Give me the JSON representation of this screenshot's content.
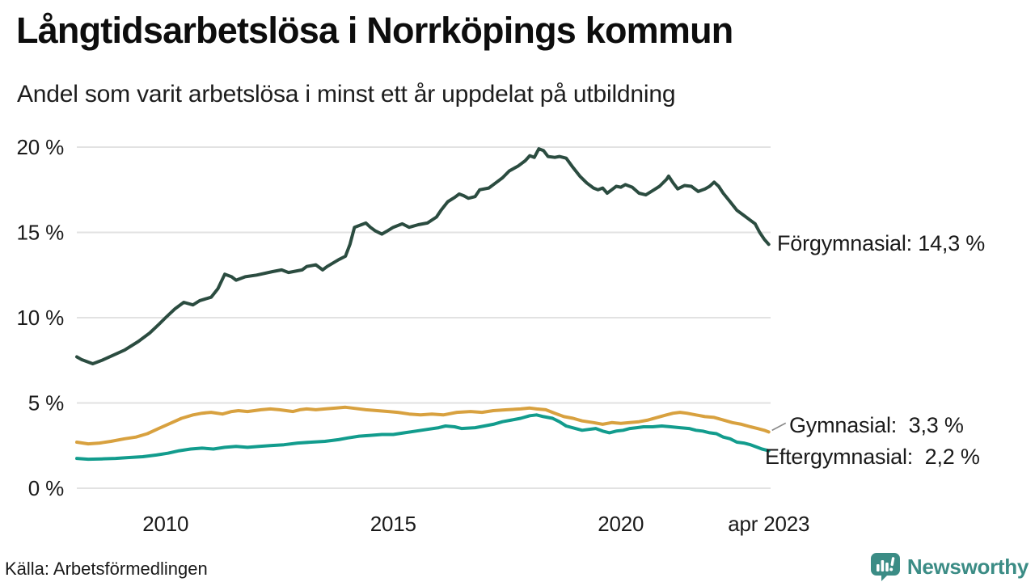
{
  "header": {
    "title": "Långtidsarbetslösa i Norrköpings kommun",
    "subtitle": "Andel som varit arbetslösa i minst ett år uppdelat på utbildning"
  },
  "chart_data": {
    "type": "line",
    "title": "Långtidsarbetslösa i Norrköpings kommun",
    "subtitle": "Andel som varit arbetslösa i minst ett år uppdelat på utbildning",
    "x_unit": "year (decimal, monthly data)",
    "xlim": [
      2008.05,
      2023.29
    ],
    "ylim": [
      0,
      20
    ],
    "grid": "horizontal",
    "legend_position": "end-of-line labels, right side",
    "y_ticks": [
      {
        "value": 0,
        "label": "0 %"
      },
      {
        "value": 5,
        "label": "5 %"
      },
      {
        "value": 10,
        "label": "10 %"
      },
      {
        "value": 15,
        "label": "15 %"
      },
      {
        "value": 20,
        "label": "20 %"
      }
    ],
    "x_ticks": [
      {
        "value": 2010,
        "label": "2010"
      },
      {
        "value": 2015,
        "label": "2015"
      },
      {
        "value": 2020,
        "label": "2020"
      },
      {
        "value": 2023.25,
        "label": "apr 2023"
      }
    ],
    "series": [
      {
        "id": "forgymnasial",
        "name": "Förgymnasial",
        "color": "#2b4c40",
        "last_value": "14,3 %",
        "end_label": "Förgymnasial: 14,3 %",
        "label_connector": false,
        "points": [
          [
            2008.05,
            7.7
          ],
          [
            2008.15,
            7.55
          ],
          [
            2008.4,
            7.3
          ],
          [
            2008.6,
            7.5
          ],
          [
            2008.85,
            7.8
          ],
          [
            2009.1,
            8.1
          ],
          [
            2009.4,
            8.6
          ],
          [
            2009.65,
            9.1
          ],
          [
            2009.85,
            9.6
          ],
          [
            2010.0,
            10.0
          ],
          [
            2010.2,
            10.5
          ],
          [
            2010.4,
            10.9
          ],
          [
            2010.6,
            10.75
          ],
          [
            2010.75,
            11.0
          ],
          [
            2011.0,
            11.2
          ],
          [
            2011.15,
            11.7
          ],
          [
            2011.3,
            12.55
          ],
          [
            2011.45,
            12.4
          ],
          [
            2011.55,
            12.2
          ],
          [
            2011.75,
            12.4
          ],
          [
            2012.0,
            12.5
          ],
          [
            2012.35,
            12.7
          ],
          [
            2012.55,
            12.8
          ],
          [
            2012.7,
            12.65
          ],
          [
            2013.0,
            12.8
          ],
          [
            2013.1,
            13.0
          ],
          [
            2013.3,
            13.1
          ],
          [
            2013.45,
            12.8
          ],
          [
            2013.55,
            13.0
          ],
          [
            2013.8,
            13.4
          ],
          [
            2013.95,
            13.6
          ],
          [
            2014.05,
            14.3
          ],
          [
            2014.15,
            15.3
          ],
          [
            2014.3,
            15.45
          ],
          [
            2014.4,
            15.55
          ],
          [
            2014.5,
            15.3
          ],
          [
            2014.6,
            15.1
          ],
          [
            2014.75,
            14.9
          ],
          [
            2014.85,
            15.05
          ],
          [
            2015.0,
            15.3
          ],
          [
            2015.2,
            15.5
          ],
          [
            2015.35,
            15.3
          ],
          [
            2015.55,
            15.45
          ],
          [
            2015.75,
            15.55
          ],
          [
            2015.95,
            15.9
          ],
          [
            2016.05,
            16.3
          ],
          [
            2016.2,
            16.8
          ],
          [
            2016.35,
            17.05
          ],
          [
            2016.45,
            17.25
          ],
          [
            2016.55,
            17.15
          ],
          [
            2016.65,
            17.0
          ],
          [
            2016.8,
            17.1
          ],
          [
            2016.9,
            17.5
          ],
          [
            2017.1,
            17.6
          ],
          [
            2017.25,
            17.9
          ],
          [
            2017.4,
            18.2
          ],
          [
            2017.55,
            18.6
          ],
          [
            2017.75,
            18.9
          ],
          [
            2017.9,
            19.2
          ],
          [
            2018.0,
            19.5
          ],
          [
            2018.1,
            19.4
          ],
          [
            2018.2,
            19.9
          ],
          [
            2018.3,
            19.8
          ],
          [
            2018.4,
            19.45
          ],
          [
            2018.55,
            19.4
          ],
          [
            2018.65,
            19.45
          ],
          [
            2018.8,
            19.35
          ],
          [
            2018.95,
            18.8
          ],
          [
            2019.1,
            18.3
          ],
          [
            2019.25,
            17.9
          ],
          [
            2019.4,
            17.6
          ],
          [
            2019.5,
            17.5
          ],
          [
            2019.6,
            17.6
          ],
          [
            2019.7,
            17.3
          ],
          [
            2019.8,
            17.5
          ],
          [
            2019.9,
            17.7
          ],
          [
            2020.0,
            17.65
          ],
          [
            2020.1,
            17.8
          ],
          [
            2020.25,
            17.65
          ],
          [
            2020.4,
            17.3
          ],
          [
            2020.55,
            17.2
          ],
          [
            2020.7,
            17.45
          ],
          [
            2020.85,
            17.7
          ],
          [
            2021.0,
            18.1
          ],
          [
            2021.05,
            18.3
          ],
          [
            2021.15,
            17.9
          ],
          [
            2021.25,
            17.55
          ],
          [
            2021.4,
            17.75
          ],
          [
            2021.55,
            17.7
          ],
          [
            2021.7,
            17.4
          ],
          [
            2021.85,
            17.55
          ],
          [
            2021.95,
            17.7
          ],
          [
            2022.05,
            17.95
          ],
          [
            2022.15,
            17.7
          ],
          [
            2022.25,
            17.3
          ],
          [
            2022.4,
            16.8
          ],
          [
            2022.55,
            16.3
          ],
          [
            2022.7,
            16.0
          ],
          [
            2022.85,
            15.7
          ],
          [
            2022.95,
            15.5
          ],
          [
            2023.05,
            15.0
          ],
          [
            2023.15,
            14.6
          ],
          [
            2023.25,
            14.3
          ]
        ]
      },
      {
        "id": "gymnasial",
        "name": "Gymnasial",
        "color": "#d8a13f",
        "last_value": "3,3 %",
        "end_label": "Gymnasial:  3,3 %",
        "label_connector": true,
        "points": [
          [
            2008.05,
            2.7
          ],
          [
            2008.3,
            2.6
          ],
          [
            2008.55,
            2.65
          ],
          [
            2008.8,
            2.75
          ],
          [
            2009.1,
            2.9
          ],
          [
            2009.35,
            3.0
          ],
          [
            2009.6,
            3.2
          ],
          [
            2009.85,
            3.5
          ],
          [
            2010.1,
            3.8
          ],
          [
            2010.35,
            4.1
          ],
          [
            2010.6,
            4.3
          ],
          [
            2010.8,
            4.4
          ],
          [
            2011.0,
            4.45
          ],
          [
            2011.25,
            4.35
          ],
          [
            2011.45,
            4.5
          ],
          [
            2011.6,
            4.55
          ],
          [
            2011.8,
            4.5
          ],
          [
            2012.1,
            4.6
          ],
          [
            2012.3,
            4.65
          ],
          [
            2012.5,
            4.6
          ],
          [
            2012.8,
            4.5
          ],
          [
            2012.95,
            4.6
          ],
          [
            2013.1,
            4.65
          ],
          [
            2013.3,
            4.6
          ],
          [
            2013.5,
            4.65
          ],
          [
            2013.75,
            4.7
          ],
          [
            2013.95,
            4.75
          ],
          [
            2014.1,
            4.7
          ],
          [
            2014.4,
            4.6
          ],
          [
            2014.65,
            4.55
          ],
          [
            2014.9,
            4.5
          ],
          [
            2015.1,
            4.45
          ],
          [
            2015.35,
            4.35
          ],
          [
            2015.6,
            4.3
          ],
          [
            2015.85,
            4.35
          ],
          [
            2016.1,
            4.3
          ],
          [
            2016.4,
            4.45
          ],
          [
            2016.7,
            4.5
          ],
          [
            2016.95,
            4.45
          ],
          [
            2017.2,
            4.55
          ],
          [
            2017.5,
            4.6
          ],
          [
            2017.8,
            4.65
          ],
          [
            2018.0,
            4.7
          ],
          [
            2018.15,
            4.65
          ],
          [
            2018.35,
            4.6
          ],
          [
            2018.55,
            4.4
          ],
          [
            2018.75,
            4.2
          ],
          [
            2018.95,
            4.1
          ],
          [
            2019.15,
            3.95
          ],
          [
            2019.4,
            3.85
          ],
          [
            2019.6,
            3.75
          ],
          [
            2019.8,
            3.85
          ],
          [
            2020.0,
            3.8
          ],
          [
            2020.2,
            3.85
          ],
          [
            2020.4,
            3.9
          ],
          [
            2020.6,
            4.0
          ],
          [
            2020.8,
            4.15
          ],
          [
            2021.0,
            4.3
          ],
          [
            2021.15,
            4.4
          ],
          [
            2021.3,
            4.45
          ],
          [
            2021.45,
            4.4
          ],
          [
            2021.65,
            4.3
          ],
          [
            2021.85,
            4.2
          ],
          [
            2022.05,
            4.15
          ],
          [
            2022.25,
            4.0
          ],
          [
            2022.45,
            3.85
          ],
          [
            2022.65,
            3.75
          ],
          [
            2022.85,
            3.6
          ],
          [
            2023.0,
            3.5
          ],
          [
            2023.15,
            3.4
          ],
          [
            2023.25,
            3.3
          ]
        ]
      },
      {
        "id": "eftergymnasial",
        "name": "Eftergymnasial",
        "color": "#129c8d",
        "last_value": "2,2 %",
        "end_label": "Eftergymnasial:  2,2 %",
        "label_connector": false,
        "points": [
          [
            2008.05,
            1.75
          ],
          [
            2008.3,
            1.7
          ],
          [
            2008.6,
            1.72
          ],
          [
            2008.9,
            1.75
          ],
          [
            2009.2,
            1.8
          ],
          [
            2009.5,
            1.85
          ],
          [
            2009.8,
            1.95
          ],
          [
            2010.05,
            2.05
          ],
          [
            2010.3,
            2.2
          ],
          [
            2010.55,
            2.3
          ],
          [
            2010.8,
            2.35
          ],
          [
            2011.05,
            2.3
          ],
          [
            2011.3,
            2.4
          ],
          [
            2011.55,
            2.45
          ],
          [
            2011.8,
            2.4
          ],
          [
            2012.05,
            2.45
          ],
          [
            2012.3,
            2.5
          ],
          [
            2012.6,
            2.55
          ],
          [
            2012.9,
            2.65
          ],
          [
            2013.2,
            2.7
          ],
          [
            2013.5,
            2.75
          ],
          [
            2013.8,
            2.85
          ],
          [
            2014.0,
            2.95
          ],
          [
            2014.25,
            3.05
          ],
          [
            2014.5,
            3.1
          ],
          [
            2014.75,
            3.15
          ],
          [
            2015.0,
            3.15
          ],
          [
            2015.25,
            3.25
          ],
          [
            2015.5,
            3.35
          ],
          [
            2015.75,
            3.45
          ],
          [
            2016.0,
            3.55
          ],
          [
            2016.15,
            3.65
          ],
          [
            2016.35,
            3.6
          ],
          [
            2016.5,
            3.5
          ],
          [
            2016.8,
            3.55
          ],
          [
            2017.0,
            3.65
          ],
          [
            2017.2,
            3.75
          ],
          [
            2017.4,
            3.9
          ],
          [
            2017.6,
            4.0
          ],
          [
            2017.8,
            4.1
          ],
          [
            2018.0,
            4.25
          ],
          [
            2018.15,
            4.3
          ],
          [
            2018.3,
            4.2
          ],
          [
            2018.5,
            4.1
          ],
          [
            2018.65,
            3.9
          ],
          [
            2018.8,
            3.65
          ],
          [
            2019.0,
            3.5
          ],
          [
            2019.15,
            3.4
          ],
          [
            2019.3,
            3.45
          ],
          [
            2019.45,
            3.5
          ],
          [
            2019.6,
            3.35
          ],
          [
            2019.75,
            3.25
          ],
          [
            2019.9,
            3.35
          ],
          [
            2020.05,
            3.4
          ],
          [
            2020.2,
            3.5
          ],
          [
            2020.35,
            3.55
          ],
          [
            2020.5,
            3.6
          ],
          [
            2020.7,
            3.6
          ],
          [
            2020.9,
            3.65
          ],
          [
            2021.1,
            3.6
          ],
          [
            2021.3,
            3.55
          ],
          [
            2021.5,
            3.5
          ],
          [
            2021.65,
            3.4
          ],
          [
            2021.8,
            3.35
          ],
          [
            2021.95,
            3.25
          ],
          [
            2022.1,
            3.2
          ],
          [
            2022.25,
            3.0
          ],
          [
            2022.4,
            2.9
          ],
          [
            2022.55,
            2.7
          ],
          [
            2022.7,
            2.65
          ],
          [
            2022.85,
            2.55
          ],
          [
            2023.0,
            2.4
          ],
          [
            2023.1,
            2.3
          ],
          [
            2023.25,
            2.2
          ]
        ]
      }
    ]
  },
  "footer": {
    "source": "Källa: Arbetsförmedlingen",
    "brand": "Newsworthy"
  },
  "colors": {
    "forgymnasial": "#2b4c40",
    "gymnasial": "#d8a13f",
    "eftergymnasial": "#129c8d",
    "gridline": "#e2e2e2",
    "connector": "#8a8a8a",
    "brand_teal": "#3b8c85",
    "text": "#1a1a1a"
  }
}
